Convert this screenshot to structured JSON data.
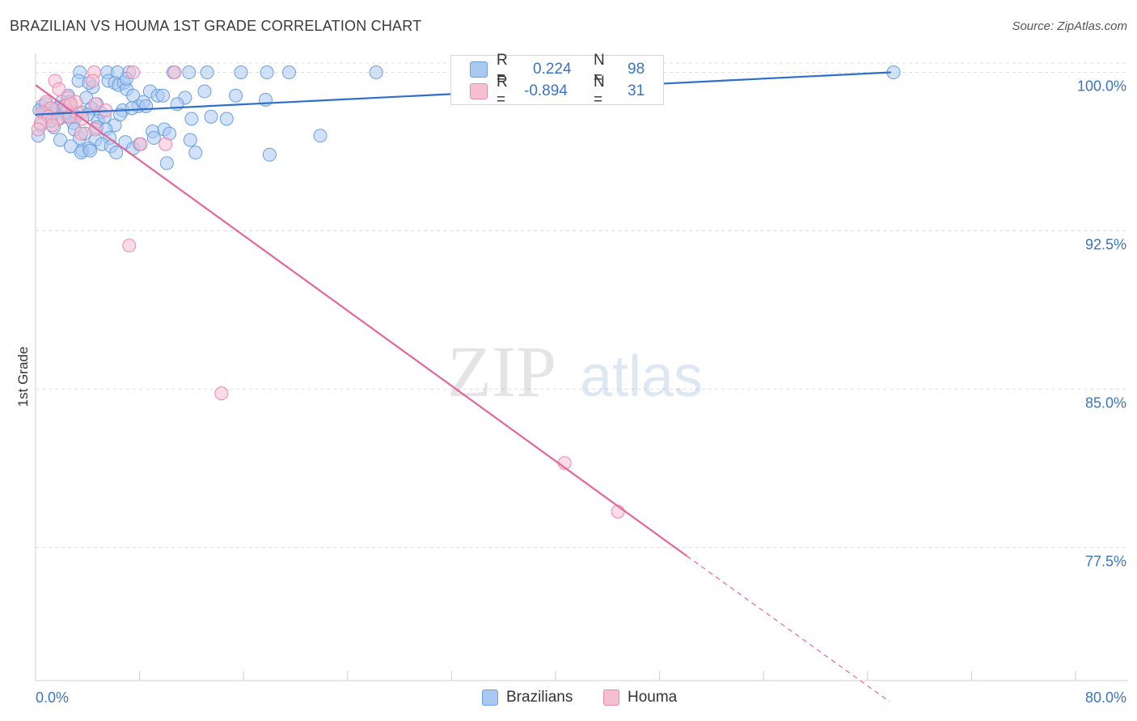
{
  "header": {
    "title": "BRAZILIAN VS HOUMA 1ST GRADE CORRELATION CHART",
    "source": "Source: ZipAtlas.com"
  },
  "watermark": {
    "zip": "ZIP",
    "atlas": "atlas"
  },
  "stats": [
    {
      "r_label": "R =",
      "r_value": "0.224",
      "n_label": "N =",
      "n_value": "98",
      "color": "#a9c8f2",
      "border": "#6a9fe0"
    },
    {
      "r_label": "R =",
      "r_value": "-0.894",
      "n_label": "N =",
      "n_value": "31",
      "color": "#f7bfd2",
      "border": "#e98aac"
    }
  ],
  "legend": {
    "items": [
      {
        "label": "Brazilians",
        "color": "#a9c8f2",
        "border": "#6a9fe0"
      },
      {
        "label": "Houma",
        "color": "#f7bfd2",
        "border": "#e98aac"
      }
    ]
  },
  "chart_data": {
    "type": "scatter",
    "title": "BRAZILIAN VS HOUMA 1ST GRADE CORRELATION CHART",
    "xlabel": "",
    "ylabel": "1st Grade",
    "xlim": [
      0,
      80
    ],
    "ylim": [
      71.2,
      100.9
    ],
    "x_tick_labels": [
      "0.0%",
      "80.0%"
    ],
    "y_ticks": [
      100.0,
      92.5,
      85.0,
      77.5
    ],
    "y_tick_labels": [
      "100.0%",
      "92.5%",
      "85.0%",
      "77.5%"
    ],
    "grid": true,
    "series": [
      {
        "name": "Brazilians",
        "color": "#6a9fe0",
        "fill": "#a9c8f2",
        "trend_color": "#2f6fcc",
        "trend": {
          "x0": 0.0,
          "y0": 98.0,
          "x1": 65.8,
          "y1": 100.0
        },
        "points": [
          [
            3.4,
            100.0
          ],
          [
            5.5,
            100.0
          ],
          [
            6.3,
            100.0
          ],
          [
            7.2,
            100.0
          ],
          [
            10.6,
            100.0
          ],
          [
            11.8,
            100.0
          ],
          [
            13.2,
            100.0
          ],
          [
            15.8,
            100.0
          ],
          [
            17.8,
            100.0
          ],
          [
            19.5,
            100.0
          ],
          [
            26.2,
            100.0
          ],
          [
            66.0,
            100.0
          ],
          [
            3.3,
            99.6
          ],
          [
            4.4,
            99.3
          ],
          [
            5.6,
            99.6
          ],
          [
            6.1,
            99.5
          ],
          [
            6.4,
            99.4
          ],
          [
            6.8,
            99.5
          ],
          [
            7.0,
            99.2
          ],
          [
            8.8,
            99.1
          ],
          [
            9.4,
            98.9
          ],
          [
            2.5,
            98.9
          ],
          [
            3.9,
            98.8
          ],
          [
            7.5,
            98.9
          ],
          [
            11.5,
            98.8
          ],
          [
            15.4,
            98.9
          ],
          [
            17.7,
            98.7
          ],
          [
            2.0,
            98.6
          ],
          [
            4.7,
            98.5
          ],
          [
            7.9,
            98.4
          ],
          [
            8.3,
            98.6
          ],
          [
            10.9,
            98.5
          ],
          [
            0.5,
            98.4
          ],
          [
            1.1,
            98.3
          ],
          [
            1.5,
            98.2
          ],
          [
            2.2,
            98.4
          ],
          [
            2.8,
            98.1
          ],
          [
            3.6,
            98.1
          ],
          [
            4.3,
            98.3
          ],
          [
            6.7,
            98.2
          ],
          [
            7.4,
            98.3
          ],
          [
            0.3,
            98.2
          ],
          [
            0.7,
            98.1
          ],
          [
            1.3,
            98.0
          ],
          [
            2.4,
            97.9
          ],
          [
            3.1,
            97.9
          ],
          [
            4.0,
            98.0
          ],
          [
            5.0,
            98.1
          ],
          [
            1.8,
            97.8
          ],
          [
            2.9,
            97.6
          ],
          [
            4.8,
            97.7
          ],
          [
            6.1,
            97.5
          ],
          [
            12.0,
            97.8
          ],
          [
            13.5,
            97.9
          ],
          [
            14.7,
            97.8
          ],
          [
            0.4,
            97.5
          ],
          [
            1.4,
            97.4
          ],
          [
            3.0,
            97.3
          ],
          [
            4.7,
            97.4
          ],
          [
            5.4,
            97.3
          ],
          [
            9.0,
            97.2
          ],
          [
            9.9,
            97.3
          ],
          [
            10.3,
            97.1
          ],
          [
            0.2,
            97.0
          ],
          [
            1.9,
            96.8
          ],
          [
            3.4,
            96.9
          ],
          [
            4.6,
            96.8
          ],
          [
            5.7,
            96.9
          ],
          [
            6.9,
            96.7
          ],
          [
            9.1,
            96.9
          ],
          [
            11.9,
            96.8
          ],
          [
            21.9,
            97.0
          ],
          [
            2.7,
            96.5
          ],
          [
            3.6,
            96.3
          ],
          [
            4.1,
            96.4
          ],
          [
            5.1,
            96.6
          ],
          [
            5.8,
            96.5
          ],
          [
            7.5,
            96.4
          ],
          [
            8.0,
            96.6
          ],
          [
            12.3,
            96.2
          ],
          [
            18.0,
            96.1
          ],
          [
            3.5,
            96.2
          ],
          [
            4.2,
            96.3
          ],
          [
            6.2,
            96.2
          ],
          [
            10.1,
            95.7
          ],
          [
            7.0,
            99.7
          ],
          [
            4.1,
            99.5
          ],
          [
            0.8,
            98.5
          ],
          [
            1.6,
            98.3
          ],
          [
            2.3,
            98.1
          ],
          [
            5.3,
            97.9
          ],
          [
            8.5,
            98.4
          ],
          [
            9.8,
            98.9
          ],
          [
            13.0,
            99.1
          ],
          [
            1.2,
            97.7
          ],
          [
            2.6,
            98.6
          ],
          [
            3.8,
            97.1
          ],
          [
            6.5,
            98.0
          ]
        ]
      },
      {
        "name": "Houma",
        "color": "#e98aac",
        "fill": "#f7bfd2",
        "trend_color": "#e4679a",
        "trend": {
          "x0": 0.0,
          "y0": 99.4,
          "x1": 50.1,
          "y1": 77.1
        },
        "trend_dashed": {
          "x0": 50.1,
          "y0": 77.1,
          "x1": 65.7,
          "y1": 70.2
        },
        "points": [
          [
            1.5,
            99.6
          ],
          [
            1.8,
            99.2
          ],
          [
            2.5,
            98.8
          ],
          [
            4.5,
            100.0
          ],
          [
            7.5,
            100.0
          ],
          [
            10.7,
            100.0
          ],
          [
            4.4,
            99.6
          ],
          [
            0.8,
            98.6
          ],
          [
            1.2,
            98.3
          ],
          [
            2.3,
            98.4
          ],
          [
            3.2,
            98.1
          ],
          [
            3.1,
            98.6
          ],
          [
            4.6,
            98.5
          ],
          [
            5.4,
            98.2
          ],
          [
            0.5,
            98.1
          ],
          [
            1.0,
            97.9
          ],
          [
            1.7,
            97.8
          ],
          [
            2.6,
            97.9
          ],
          [
            3.6,
            97.8
          ],
          [
            0.4,
            97.6
          ],
          [
            1.3,
            97.5
          ],
          [
            4.6,
            97.3
          ],
          [
            0.2,
            97.3
          ],
          [
            3.5,
            97.1
          ],
          [
            8.1,
            96.6
          ],
          [
            10.0,
            96.6
          ],
          [
            7.2,
            91.8
          ],
          [
            14.3,
            84.8
          ],
          [
            40.7,
            81.5
          ],
          [
            44.8,
            79.2
          ],
          [
            2.7,
            98.5
          ]
        ]
      }
    ]
  }
}
